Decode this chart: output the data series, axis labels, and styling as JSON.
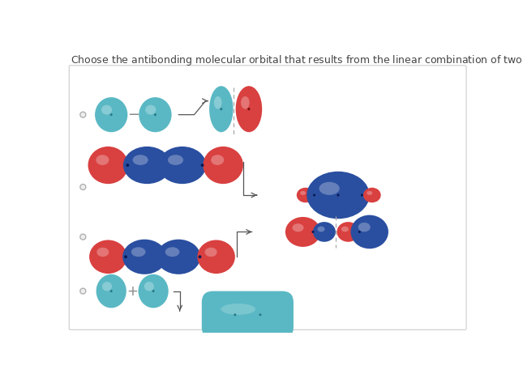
{
  "background": "#ffffff",
  "teal": "#5ab8c4",
  "red": "#d94040",
  "blue": "#2a4fa0",
  "dot_teal": "#2a7a8a",
  "dot_red": "#7a1010",
  "dot_blue": "#0a1a55",
  "radio_edge": "#b0b0b0",
  "arrow_color": "#555555",
  "dash_color": "#aaaaaa",
  "text_color": "#444444",
  "border_color": "#cccccc"
}
